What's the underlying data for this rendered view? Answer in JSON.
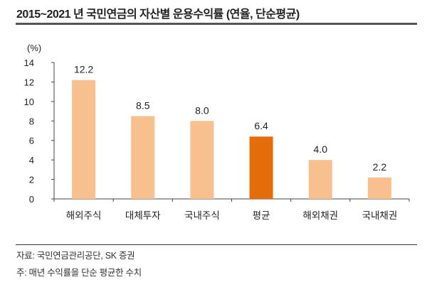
{
  "title": "2015~2021 년 국민연금의 자산별 운용수익률 (연율, 단순평균)",
  "footer": {
    "source": "자료: 국민연금관리공단, SK 증권",
    "note": "주: 매년 수익률을 단순 평균한 수치"
  },
  "chart_data": {
    "type": "bar",
    "ylabel": "(%)",
    "ylim": [
      0,
      14
    ],
    "yticks": [
      0,
      2,
      4,
      6,
      8,
      10,
      12,
      14
    ],
    "categories": [
      "해외주식",
      "대체투자",
      "국내주식",
      "평균",
      "해외채권",
      "국내채권"
    ],
    "values": [
      12.2,
      8.5,
      8.0,
      6.4,
      4.0,
      2.2
    ],
    "data_labels": [
      "12.2",
      "8.5",
      "8.0",
      "6.4",
      "4.0",
      "2.2"
    ],
    "colors": {
      "default": "#F9C08F",
      "highlight": "#E46C0A"
    },
    "highlight_category": "평균",
    "grid": false,
    "legend": "none"
  }
}
